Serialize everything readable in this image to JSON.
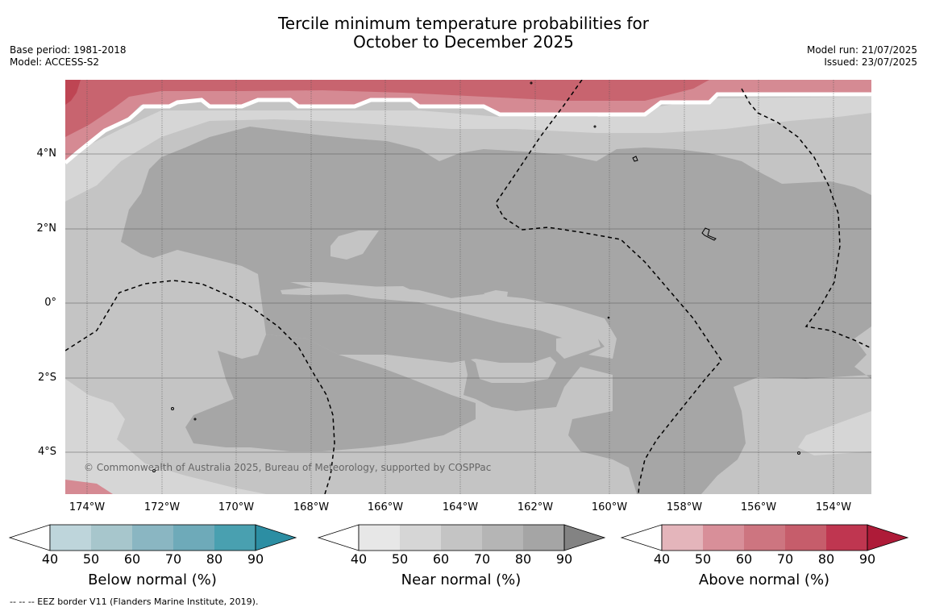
{
  "title": {
    "line1": "Tercile minimum temperature probabilities for",
    "line2": "October to December 2025"
  },
  "meta_left": {
    "base_period": "Base period: 1981-2018",
    "model": "Model: ACCESS-S2"
  },
  "meta_right": {
    "model_run": "Model run: 21/07/2025",
    "issued": "Issued: 23/07/2025"
  },
  "map": {
    "lat_labels": [
      "4°N",
      "2°N",
      "0°",
      "2°S",
      "4°S"
    ],
    "lon_labels": [
      "174°W",
      "172°W",
      "170°W",
      "168°W",
      "166°W",
      "164°W",
      "162°W",
      "160°W",
      "158°W",
      "156°W",
      "154°W"
    ],
    "copyright": "© Commonwealth of Australia 2025, Bureau of Meteorology, supported by COSPPac",
    "colors": {
      "near_light": "#d6d6d6",
      "near_mid": "#c4c4c4",
      "near_dark": "#a6a6a6",
      "above_light": "#d58a93",
      "above_mid": "#c8646f",
      "above_dark": "#be4553"
    }
  },
  "colorbars": [
    {
      "title": "Below normal (%)",
      "ticks": [
        "40",
        "50",
        "60",
        "70",
        "80",
        "90"
      ],
      "colors": [
        "#bed5db",
        "#a7c6cc",
        "#8ab6c2",
        "#6eaab9",
        "#49a0b0",
        "#2c8ea3"
      ]
    },
    {
      "title": "Near normal (%)",
      "ticks": [
        "40",
        "50",
        "60",
        "70",
        "80",
        "90"
      ],
      "colors": [
        "#e7e7e7",
        "#d6d6d6",
        "#c4c4c4",
        "#b5b5b5",
        "#a5a5a5",
        "#838383"
      ]
    },
    {
      "title": "Above normal (%)",
      "ticks": [
        "40",
        "50",
        "60",
        "70",
        "80",
        "90"
      ],
      "colors": [
        "#e4b5bb",
        "#d88f99",
        "#cd7580",
        "#c65d6b",
        "#bf3650",
        "#ae1b38"
      ]
    }
  ],
  "footnote": "--  --  -- EEZ border V11 (Flanders Marine Institute, 2019)."
}
